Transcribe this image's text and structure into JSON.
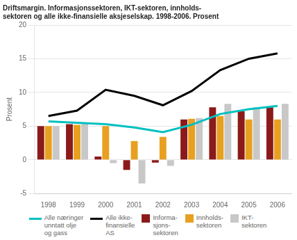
{
  "chart_data": {
    "type": "bar",
    "title": "Driftsmargin. Informasjonssektoren, IKT-sektoren, innholds-\nsektoren og alle ikke-finansielle aksjeselskap. 1998-2006. Prosent",
    "ylabel": "Prosent",
    "categories": [
      "1998",
      "1999",
      "2000",
      "2001",
      "2002",
      "2003",
      "2004",
      "2005",
      "2006"
    ],
    "series": [
      {
        "name": "Alle næringer\nunntatt olje\nog gass",
        "type": "line",
        "color": "#00C0C0",
        "marker": "none",
        "values": [
          5.7,
          5.5,
          5.3,
          4.8,
          4.1,
          5.2,
          6.8,
          7.5,
          8.0
        ]
      },
      {
        "name": "Alle ikke-\nfinansielle\nAS",
        "type": "line",
        "color": "#000000",
        "marker": "none",
        "values": [
          6.5,
          7.3,
          10.4,
          9.5,
          8.1,
          10.2,
          13.3,
          15.0,
          15.8
        ]
      },
      {
        "name": "Informa-\nsjons-\nsektoren",
        "type": "bar",
        "color": "#8B1A1A",
        "values": [
          5.0,
          5.3,
          0.5,
          -1.5,
          -0.4,
          6.0,
          7.8,
          7.2,
          7.8
        ]
      },
      {
        "name": "Innholds-\nsektoren",
        "type": "bar",
        "color": "#E8A020",
        "values": [
          5.0,
          5.2,
          5.0,
          2.8,
          3.4,
          6.1,
          6.5,
          6.0,
          6.0
        ]
      },
      {
        "name": "IKT-\nsektoren",
        "type": "bar",
        "color": "#C8C8C8",
        "values": [
          5.0,
          5.5,
          -0.5,
          -3.5,
          -0.9,
          6.2,
          8.3,
          7.8,
          8.3
        ]
      }
    ],
    "ylim": [
      -5,
      20
    ],
    "yticks": [
      -5,
      0,
      5,
      10,
      15,
      20
    ],
    "grid": true,
    "legend": "bottom"
  }
}
